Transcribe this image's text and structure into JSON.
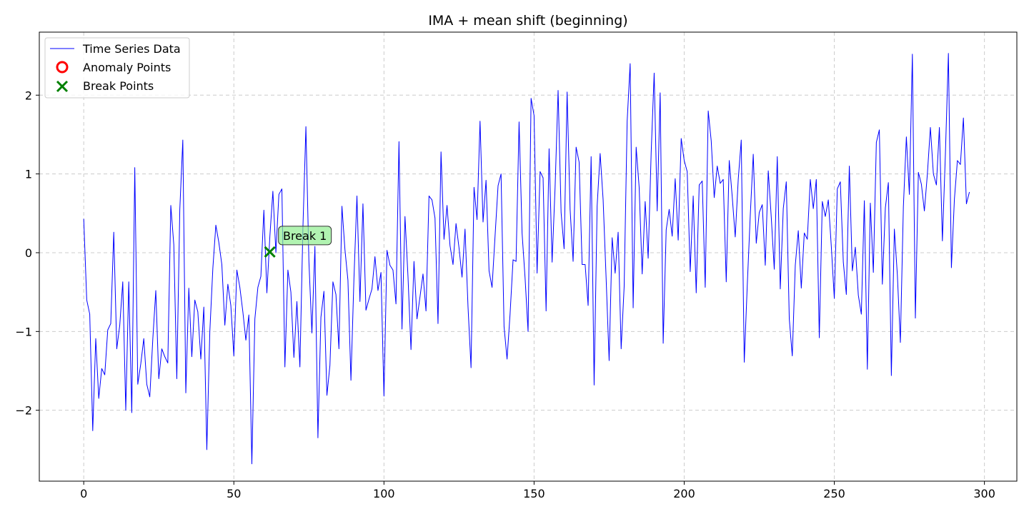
{
  "chart_data": {
    "type": "line",
    "title": "IMA + mean shift (beginning)",
    "xlabel": "",
    "ylabel": "",
    "xlim": [
      -14.8,
      310.8
    ],
    "ylim": [
      -2.9,
      2.8
    ],
    "xticks": [
      0,
      50,
      100,
      150,
      200,
      250,
      300
    ],
    "yticks": [
      -2,
      -1,
      0,
      1,
      2
    ],
    "ytick_labels": [
      "−2",
      "−1",
      "0",
      "1",
      "2"
    ],
    "grid": true,
    "legend_position": "top-left",
    "legend": {
      "series_label": "Time Series Data",
      "anomaly_label": "Anomaly Points",
      "break_label": "Break Points"
    },
    "colors": {
      "series": "#0000ff",
      "anomaly": "#ff0000",
      "break": "#008000",
      "annotation_fill": "#90ee90"
    },
    "series": [
      {
        "name": "Time Series Data",
        "values": [
          0.43,
          -0.6,
          -0.78,
          -2.26,
          -1.09,
          -1.85,
          -1.47,
          -1.55,
          -0.98,
          -0.9,
          0.26,
          -1.22,
          -0.92,
          -0.37,
          -2.0,
          -0.37,
          -2.03,
          1.08,
          -1.67,
          -1.41,
          -1.09,
          -1.67,
          -1.83,
          -1.1,
          -0.48,
          -1.6,
          -1.22,
          -1.32,
          -1.4,
          0.6,
          0.1,
          -1.6,
          0.55,
          1.43,
          -1.78,
          -0.45,
          -1.32,
          -0.6,
          -0.75,
          -1.35,
          -0.69,
          -2.5,
          -1.0,
          -0.2,
          0.35,
          0.13,
          -0.15,
          -0.92,
          -0.4,
          -0.67,
          -1.31,
          -0.22,
          -0.44,
          -0.75,
          -1.11,
          -0.79,
          -2.68,
          -0.84,
          -0.44,
          -0.3,
          0.54,
          -0.51,
          0.21,
          0.78,
          0.0,
          0.74,
          0.81,
          -1.45,
          -0.22,
          -0.5,
          -1.33,
          -0.62,
          -1.45,
          0.31,
          1.6,
          -0.11,
          -1.02,
          0.08,
          -2.35,
          -0.82,
          -0.49,
          -1.81,
          -1.43,
          -0.37,
          -0.53,
          -1.22,
          0.59,
          0.04,
          -0.35,
          -1.62,
          -0.33,
          0.72,
          -0.62,
          0.62,
          -0.73,
          -0.59,
          -0.46,
          -0.05,
          -0.48,
          -0.25,
          -1.82,
          0.03,
          -0.16,
          -0.22,
          -0.65,
          1.41,
          -0.97,
          0.46,
          -0.3,
          -1.23,
          -0.11,
          -0.84,
          -0.56,
          -0.27,
          -0.74,
          0.72,
          0.67,
          0.44,
          -0.9,
          1.28,
          0.17,
          0.6,
          0.09,
          -0.15,
          0.37,
          0.06,
          -0.31,
          0.3,
          -0.69,
          -1.46,
          0.83,
          0.42,
          1.67,
          0.39,
          0.92,
          -0.23,
          -0.44,
          0.21,
          0.85,
          1.0,
          -0.94,
          -1.35,
          -0.78,
          -0.09,
          -0.11,
          1.66,
          0.25,
          -0.32,
          -1.0,
          1.96,
          1.74,
          -0.26,
          1.03,
          0.95,
          -0.74,
          1.32,
          -0.12,
          0.83,
          2.06,
          0.51,
          0.05,
          2.04,
          0.55,
          -0.11,
          1.34,
          1.15,
          -0.15,
          -0.15,
          -0.67,
          1.22,
          -1.68,
          0.59,
          1.26,
          0.67,
          -0.33,
          -1.37,
          0.19,
          -0.26,
          0.26,
          -1.22,
          -0.43,
          1.67,
          2.4,
          -0.7,
          1.34,
          0.83,
          -0.27,
          0.65,
          -0.07,
          1.27,
          2.28,
          0.53,
          2.03,
          -1.15,
          0.29,
          0.55,
          0.21,
          0.94,
          0.16,
          1.45,
          1.17,
          1.03,
          -0.24,
          0.72,
          -0.51,
          0.86,
          0.91,
          -0.44,
          1.8,
          1.42,
          0.7,
          1.1,
          0.88,
          0.93,
          -0.37,
          1.17,
          0.71,
          0.2,
          0.93,
          1.43,
          -1.39,
          -0.42,
          0.47,
          1.25,
          0.12,
          0.51,
          0.61,
          -0.16,
          1.04,
          0.45,
          -0.21,
          1.22,
          -0.46,
          0.56,
          0.9,
          -0.84,
          -1.31,
          -0.16,
          0.28,
          -0.45,
          0.25,
          0.17,
          0.93,
          0.56,
          0.93,
          -1.08,
          0.65,
          0.46,
          0.67,
          0.08,
          -0.58,
          0.81,
          0.9,
          -0.12,
          -0.53,
          1.1,
          -0.23,
          0.07,
          -0.54,
          -0.78,
          0.66,
          -1.48,
          0.63,
          -0.25,
          1.4,
          1.56,
          -0.4,
          0.57,
          0.89,
          -1.56,
          0.3,
          -0.28,
          -1.14,
          0.58,
          1.47,
          0.74,
          2.52,
          -0.83,
          1.02,
          0.87,
          0.53,
          1.0,
          1.59,
          1.0,
          0.86,
          1.59,
          0.15,
          1.25,
          2.53,
          -0.19,
          0.68,
          1.17,
          1.12,
          1.71,
          0.62,
          0.77
        ]
      }
    ],
    "anomaly_points": [],
    "break_points": [
      {
        "x": 62,
        "y": 0.01,
        "label": "Break 1"
      }
    ]
  }
}
